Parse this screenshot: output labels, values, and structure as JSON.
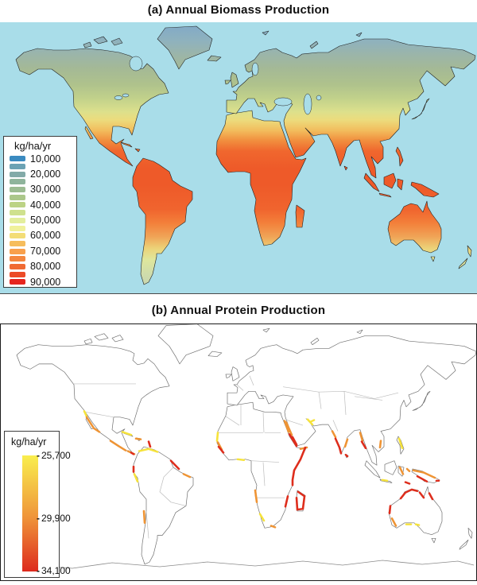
{
  "figure": {
    "panel_a": {
      "title": "(a) Annual Biomass Production",
      "legend": {
        "unit": "kg/ha/yr",
        "labels": [
          "10,000",
          "20,000",
          "30,000",
          "40,000",
          "50,000",
          "60,000",
          "70,000",
          "80,000",
          "90,000"
        ],
        "swatch_colors": [
          "#3a8ac0",
          "#6ba2b4",
          "#82aaa8",
          "#8fb49c",
          "#9cbc92",
          "#abc78a",
          "#bcd385",
          "#cfe18e",
          "#e3ee9d",
          "#f0f19b",
          "#f3dd76",
          "#f6bd5c",
          "#f8a04c",
          "#f4873f",
          "#f06a33",
          "#ec4b27",
          "#e6251f"
        ]
      },
      "map": {
        "ocean_color": "#a9dde9"
      }
    },
    "panel_b": {
      "title": "(b) Annual Protein Production",
      "legend": {
        "unit": "kg/ha/yr",
        "tick_labels": [
          "25,700",
          "29,900",
          "34,100"
        ],
        "gradient": [
          "#f9ee4e",
          "#ef9339",
          "#dd2a1d"
        ]
      },
      "highlight_colors": {
        "low": "#f6e33b",
        "mid": "#ef9434",
        "high": "#de2d1c"
      }
    }
  }
}
